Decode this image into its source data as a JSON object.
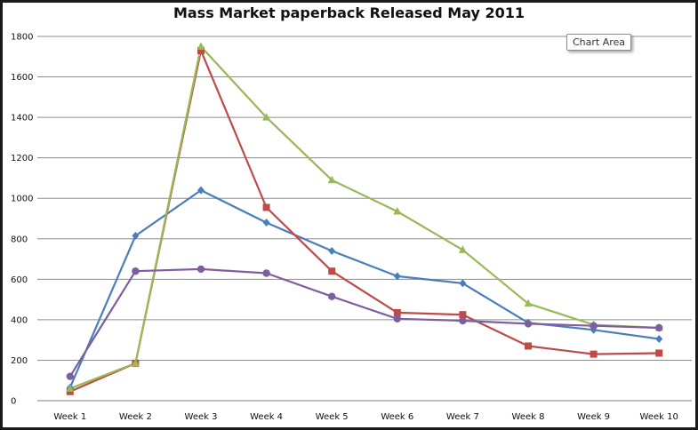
{
  "chart_data": {
    "type": "line",
    "title": "Mass Market paperback  Released May 2011",
    "xlabel": "",
    "ylabel": "",
    "categories": [
      "Week 1",
      "Week 2",
      "Week 3",
      "Week 4",
      "Week 5",
      "Week 6",
      "Week 7",
      "Week 8",
      "Week 9",
      "Week 10"
    ],
    "ylim": [
      0,
      1800
    ],
    "yticks": [
      "0",
      "200",
      "400",
      "600",
      "800",
      "1000",
      "1200",
      "1400",
      "1600",
      "1800"
    ],
    "grid": true,
    "legend": "none",
    "series": [
      {
        "color": "#4a7ebb",
        "marker": "diamond",
        "values": [
          65,
          815,
          1040,
          880,
          740,
          615,
          580,
          385,
          350,
          305
        ]
      },
      {
        "color": "#be4b48",
        "marker": "square",
        "values": [
          45,
          185,
          1730,
          955,
          640,
          435,
          425,
          270,
          230,
          235
        ]
      },
      {
        "color": "#98b954",
        "marker": "triangle",
        "values": [
          60,
          185,
          1750,
          1400,
          1090,
          935,
          745,
          480,
          375,
          360
        ]
      },
      {
        "color": "#7d5fa0",
        "marker": "circle",
        "values": [
          120,
          640,
          650,
          630,
          515,
          405,
          395,
          380,
          370,
          360
        ]
      }
    ]
  },
  "tooltip": {
    "label": "Chart Area"
  }
}
